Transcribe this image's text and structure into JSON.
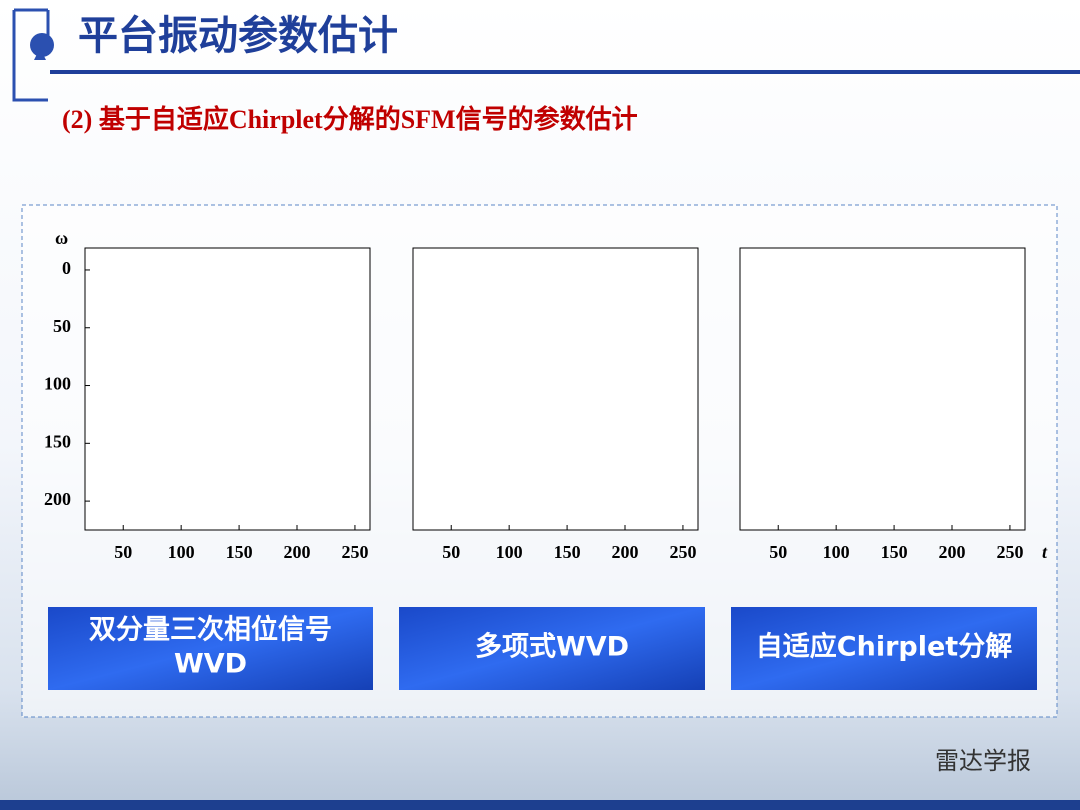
{
  "header": {
    "title": "平台振动参数估计"
  },
  "subtitle": "(2) 基于自适应Chirplet分解的SFM信号的参数估计",
  "y_axis": {
    "label": "ω",
    "ticks": [
      0,
      50,
      100,
      150,
      200
    ],
    "ylim": [
      225,
      -19
    ]
  },
  "x_axis": {
    "label": "t",
    "ticks": [
      50,
      100,
      150,
      200,
      250
    ],
    "xlim": [
      17,
      263
    ]
  },
  "panels": [
    {
      "caption": [
        "双分量三次相位信号",
        "WVD"
      ]
    },
    {
      "caption": [
        "多项式WVD"
      ]
    },
    {
      "caption": [
        "自适应Chirplet分解"
      ]
    }
  ],
  "watermark": "雷达学报"
}
